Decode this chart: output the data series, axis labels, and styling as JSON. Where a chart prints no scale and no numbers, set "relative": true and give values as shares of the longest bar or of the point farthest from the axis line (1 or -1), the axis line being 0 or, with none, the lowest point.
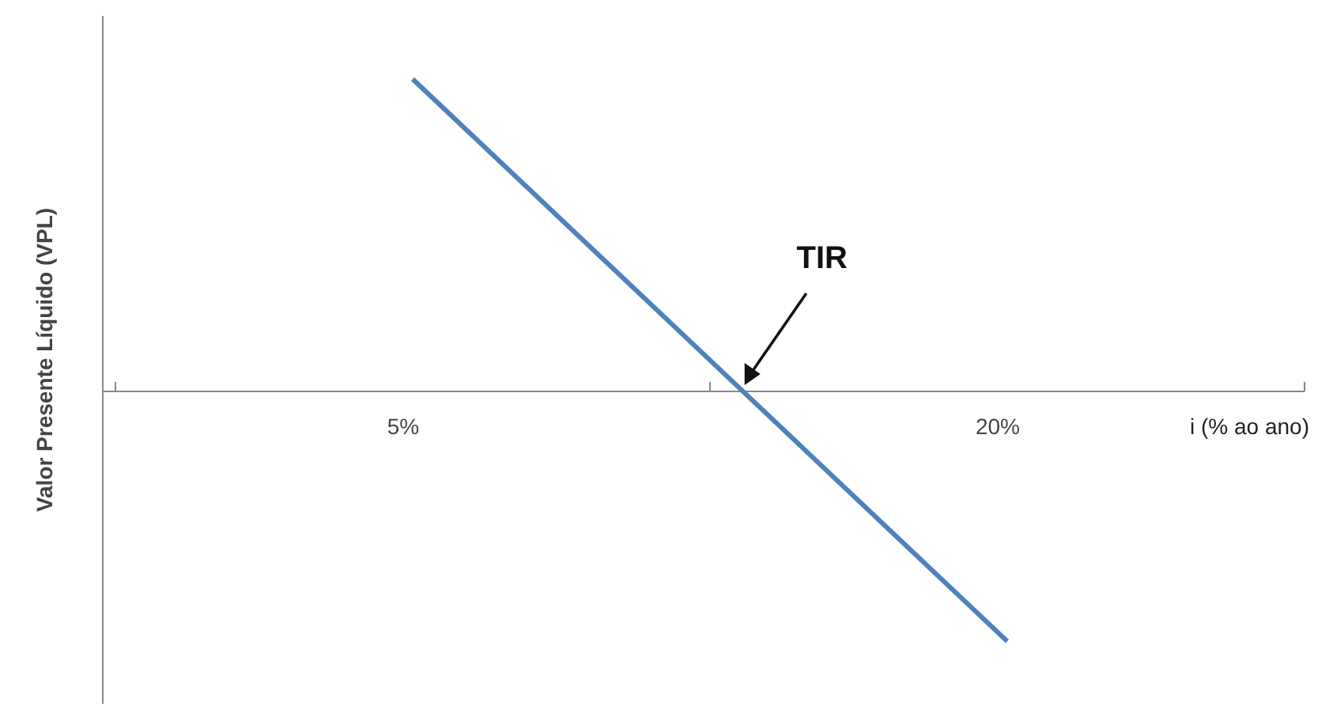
{
  "chart_data": {
    "type": "line",
    "relative": true,
    "categories": [
      "5%",
      "20%"
    ],
    "series": [
      {
        "color": "#4f81bd",
        "values": [
          1,
          -0.8
        ]
      }
    ],
    "xlabel": "i (% ao ano)",
    "ylabel": "Valor Presente Líquido (VPL)",
    "annotations": [
      "TIR"
    ],
    "marker": "none"
  }
}
